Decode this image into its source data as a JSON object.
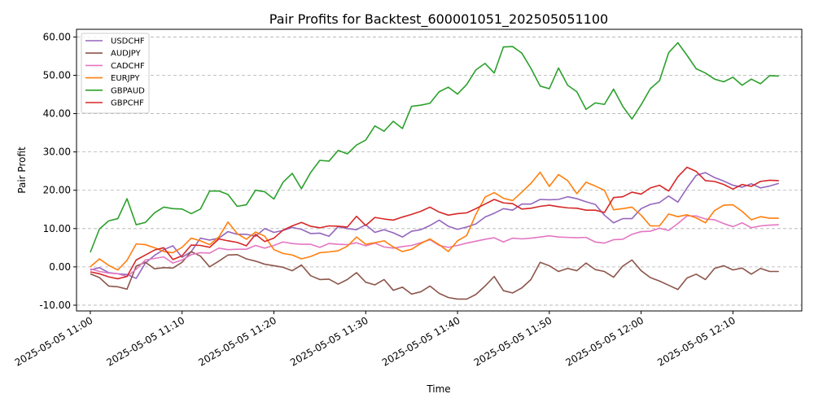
{
  "chart_data": {
    "type": "line",
    "title": "Pair Profits for Backtest_600001051_202505051100",
    "xlabel": "Time",
    "ylabel": "Pair Profit",
    "x_start": "2025-05-05 11:00",
    "x_step_minutes": 1,
    "xlim_minutes": [
      -1.5,
      77.5
    ],
    "ylim": [
      -11.5,
      62
    ],
    "grid": "y-only dashed",
    "legend_position": "top-left",
    "x_ticks": [
      {
        "label": "2025-05-05 11:00",
        "minute": 0
      },
      {
        "label": "2025-05-05 11:10",
        "minute": 10
      },
      {
        "label": "2025-05-05 11:20",
        "minute": 20
      },
      {
        "label": "2025-05-05 11:30",
        "minute": 30
      },
      {
        "label": "2025-05-05 11:40",
        "minute": 40
      },
      {
        "label": "2025-05-05 11:50",
        "minute": 50
      },
      {
        "label": "2025-05-05 12:00",
        "minute": 60
      },
      {
        "label": "2025-05-05 12:10",
        "minute": 70
      }
    ],
    "y_ticks": [
      {
        "label": "-10.00",
        "value": -10
      },
      {
        "label": "0.00",
        "value": 0
      },
      {
        "label": "10.00",
        "value": 10
      },
      {
        "label": "20.00",
        "value": 20
      },
      {
        "label": "30.00",
        "value": 30
      },
      {
        "label": "40.00",
        "value": 40
      },
      {
        "label": "50.00",
        "value": 50
      },
      {
        "label": "60.00",
        "value": 60
      }
    ],
    "series": [
      {
        "name": "USDCHF",
        "color": "#9467bd",
        "values": [
          -0.8,
          -0.2,
          -1.5,
          -1.8,
          -2.0,
          -3.0,
          1.0,
          3.0,
          4.5,
          5.5,
          2.5,
          4.0,
          7.5,
          7.0,
          7.5,
          9.2,
          8.5,
          8.5,
          8.0,
          10.0,
          9.0,
          9.5,
          10.3,
          9.8,
          8.7,
          8.8,
          8.0,
          10.5,
          10.0,
          9.7,
          11.0,
          9.0,
          9.7,
          8.9,
          7.8,
          9.3,
          9.7,
          10.8,
          12.2,
          10.6,
          9.8,
          10.4,
          11.2,
          13.0,
          14.0,
          15.2,
          14.8,
          16.4,
          16.4,
          17.6,
          17.5,
          17.6,
          18.3,
          17.8,
          17.0,
          16.3,
          13.5,
          11.5,
          12.6,
          12.6,
          15.2,
          16.3,
          16.8,
          18.5,
          16.9,
          20.6,
          23.9,
          24.6,
          23.3,
          22.4,
          21.3,
          20.8,
          21.7,
          20.6,
          21.1,
          21.8
        ]
      },
      {
        "name": "AUDJPY",
        "color": "#8c564b",
        "values": [
          -1.8,
          -2.8,
          -5.0,
          -5.2,
          -5.8,
          0.2,
          1.2,
          -0.5,
          -0.2,
          -0.3,
          1.2,
          4.0,
          2.8,
          0.0,
          1.5,
          3.1,
          3.2,
          2.1,
          1.5,
          0.7,
          0.3,
          -0.1,
          -1.0,
          0.5,
          -2.3,
          -3.3,
          -3.2,
          -4.5,
          -3.3,
          -1.5,
          -4.0,
          -4.7,
          -3.3,
          -6.1,
          -5.3,
          -7.1,
          -6.5,
          -5.0,
          -6.9,
          -8.0,
          -8.4,
          -8.4,
          -7.2,
          -5.0,
          -2.5,
          -6.2,
          -6.8,
          -5.5,
          -3.3,
          1.2,
          0.3,
          -1.2,
          -0.4,
          -1.0,
          1.0,
          -0.7,
          -1.2,
          -2.7,
          0.2,
          1.8,
          -1.0,
          -2.8,
          -3.7,
          -4.8,
          -5.9,
          -2.9,
          -1.9,
          -3.3,
          -0.4,
          0.3,
          -0.8,
          -0.3,
          -1.9,
          -0.4,
          -1.2,
          -1.2
        ]
      },
      {
        "name": "CADCHF",
        "color": "#e377c2",
        "values": [
          -0.5,
          -1.2,
          -1.6,
          -1.8,
          -2.5,
          -0.6,
          1.8,
          2.2,
          2.6,
          1.0,
          1.8,
          3.2,
          3.7,
          3.6,
          4.9,
          4.5,
          4.6,
          4.6,
          5.6,
          4.9,
          5.6,
          6.5,
          6.1,
          5.9,
          5.9,
          5.1,
          6.1,
          5.9,
          5.8,
          6.3,
          5.5,
          6.2,
          5.2,
          4.9,
          5.3,
          5.6,
          6.3,
          7.1,
          5.6,
          5.1,
          5.6,
          6.2,
          6.7,
          7.2,
          7.6,
          6.5,
          7.5,
          7.3,
          7.5,
          7.8,
          8.1,
          7.8,
          7.7,
          7.6,
          7.7,
          6.5,
          6.2,
          7.1,
          7.2,
          8.5,
          9.2,
          9.3,
          10.1,
          9.5,
          11.3,
          13.3,
          13.3,
          12.5,
          12.3,
          11.3,
          10.5,
          11.5,
          10.2,
          10.7,
          10.9,
          11.0
        ]
      },
      {
        "name": "EURJPY",
        "color": "#ff7f0e",
        "values": [
          0.0,
          2.1,
          0.4,
          -0.8,
          1.7,
          6.0,
          5.8,
          5.0,
          4.0,
          3.7,
          5.1,
          7.5,
          6.8,
          5.8,
          7.8,
          11.7,
          8.7,
          7.2,
          9.1,
          8.0,
          4.5,
          3.5,
          3.1,
          2.1,
          2.7,
          3.7,
          3.9,
          4.2,
          5.4,
          7.8,
          5.9,
          6.3,
          6.8,
          5.2,
          4.0,
          4.6,
          6.1,
          7.3,
          5.8,
          4.0,
          6.8,
          8.2,
          13.7,
          18.2,
          19.4,
          17.9,
          17.3,
          19.5,
          21.8,
          24.7,
          21.0,
          24.1,
          22.5,
          19.1,
          22.1,
          21.1,
          20.0,
          14.9,
          15.2,
          15.6,
          13.5,
          10.7,
          10.7,
          13.8,
          13.1,
          13.6,
          12.8,
          11.5,
          14.7,
          16.1,
          16.2,
          14.5,
          12.3,
          13.1,
          12.7,
          12.7
        ]
      },
      {
        "name": "GBPAUD",
        "color": "#2ca02c",
        "values": [
          3.8,
          9.9,
          12.0,
          12.6,
          17.8,
          11.0,
          11.6,
          14.1,
          15.6,
          15.2,
          15.1,
          13.9,
          15.1,
          19.8,
          19.8,
          18.9,
          15.8,
          16.2,
          20.0,
          19.6,
          17.7,
          22.1,
          24.4,
          20.4,
          24.6,
          27.8,
          27.6,
          30.4,
          29.5,
          31.8,
          33.1,
          36.8,
          35.4,
          38.0,
          36.1,
          41.9,
          42.2,
          42.7,
          45.7,
          46.9,
          45.1,
          47.6,
          51.4,
          53.1,
          50.6,
          57.4,
          57.5,
          55.8,
          51.8,
          47.2,
          46.5,
          51.9,
          47.4,
          45.7,
          41.1,
          42.8,
          42.4,
          46.4,
          41.9,
          38.6,
          42.3,
          46.5,
          48.6,
          55.9,
          58.5,
          55.2,
          51.7,
          50.6,
          49.0,
          48.3,
          49.5,
          47.4,
          49.0,
          47.8,
          49.9,
          49.8
        ]
      },
      {
        "name": "GBPCHF",
        "color": "#d62728",
        "values": [
          -1.3,
          -1.8,
          -2.6,
          -3.1,
          -2.5,
          1.8,
          3.1,
          4.4,
          5.0,
          1.9,
          2.9,
          5.7,
          5.6,
          5.1,
          7.3,
          6.8,
          6.4,
          5.5,
          8.5,
          6.6,
          7.5,
          9.6,
          10.7,
          11.6,
          10.6,
          10.2,
          10.7,
          10.6,
          10.4,
          13.2,
          10.8,
          12.9,
          12.5,
          12.2,
          13.0,
          13.7,
          14.5,
          15.6,
          14.3,
          13.5,
          13.9,
          14.1,
          15.2,
          16.4,
          17.6,
          16.7,
          16.5,
          15.1,
          15.3,
          15.8,
          16.1,
          15.7,
          15.4,
          15.3,
          14.8,
          14.8,
          14.2,
          18.1,
          18.3,
          19.5,
          19.0,
          20.6,
          21.3,
          19.8,
          23.5,
          26.0,
          24.9,
          22.5,
          22.3,
          21.5,
          20.3,
          21.5,
          21.0,
          22.3,
          22.6,
          22.5
        ]
      }
    ]
  }
}
